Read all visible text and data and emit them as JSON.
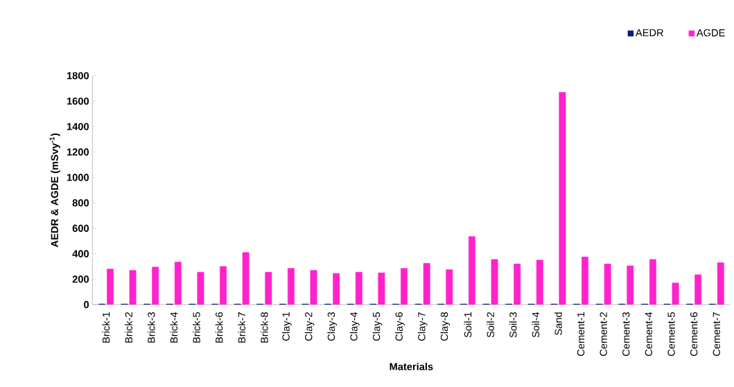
{
  "chart_data": {
    "type": "bar",
    "xlabel": "Materials",
    "ylabel": "**AEDR & AGDE (mSvy$^{-1}$)**",
    "categories": [
      "Brick-1",
      "Brick-2",
      "Brick-3",
      "Brick-4",
      "Brick-5",
      "Brick-6",
      "Brick-7",
      "Brick-8",
      "Clay-1",
      "Clay-2",
      "Clay-3",
      "Clay-4",
      "Clay-5",
      "Clay-6",
      "Clay-7",
      "Clay-8",
      "Soil-1",
      "Soil-2",
      "Soil-3",
      "Soil-4",
      "Sand",
      "Cement-1",
      "Cement-2",
      "Cement-3",
      "Cement-4",
      "Cement-5",
      "Cement-6",
      "Cement-7"
    ],
    "series": [
      {
        "name": "AEDR",
        "color": "#0d1a7a",
        "values": [
          5,
          5,
          5,
          5,
          5,
          5,
          5,
          5,
          5,
          5,
          5,
          5,
          5,
          5,
          5,
          5,
          5,
          5,
          5,
          5,
          5,
          5,
          5,
          5,
          5,
          5,
          5,
          5
        ]
      },
      {
        "name": "AGDE",
        "color": "#ff22cc",
        "values": [
          280,
          270,
          295,
          335,
          255,
          300,
          410,
          255,
          285,
          270,
          245,
          255,
          250,
          285,
          325,
          275,
          535,
          355,
          320,
          350,
          1670,
          375,
          320,
          305,
          355,
          170,
          235,
          330
        ]
      }
    ],
    "ylim": [
      0,
      1800
    ],
    "yticks": [
      0,
      200,
      400,
      600,
      800,
      1000,
      1200,
      1400,
      1600,
      1800
    ],
    "legend": "top right",
    "grid": false
  }
}
